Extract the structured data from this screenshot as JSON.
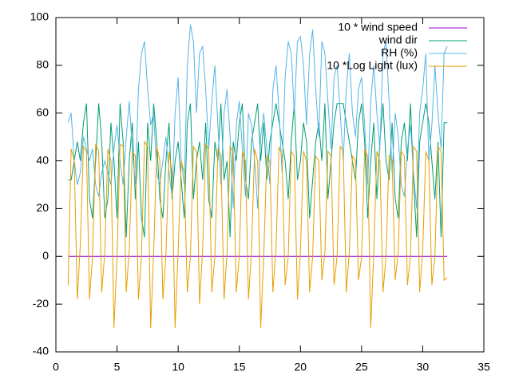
{
  "chart_data": {
    "type": "line",
    "x": [
      1,
      1.25,
      1.5,
      1.75,
      2,
      2.25,
      2.5,
      2.75,
      3,
      3.25,
      3.5,
      3.75,
      4,
      4.25,
      4.5,
      4.75,
      5,
      5.25,
      5.5,
      5.75,
      6,
      6.25,
      6.5,
      6.75,
      7,
      7.25,
      7.5,
      7.75,
      8,
      8.25,
      8.5,
      8.75,
      9,
      9.25,
      9.5,
      9.75,
      10,
      10.25,
      10.5,
      10.75,
      11,
      11.25,
      11.5,
      11.75,
      12,
      12.25,
      12.5,
      12.75,
      13,
      13.25,
      13.5,
      13.75,
      14,
      14.25,
      14.5,
      14.75,
      15,
      15.25,
      15.5,
      15.75,
      16,
      16.25,
      16.5,
      16.75,
      17,
      17.25,
      17.5,
      17.75,
      18,
      18.25,
      18.5,
      18.75,
      19,
      19.25,
      19.5,
      19.75,
      20,
      20.25,
      20.5,
      20.75,
      21,
      21.25,
      21.5,
      21.75,
      22,
      22.25,
      22.5,
      22.75,
      23,
      23.25,
      23.5,
      23.75,
      24,
      24.25,
      24.5,
      24.75,
      25,
      25.25,
      25.5,
      25.75,
      26,
      26.25,
      26.5,
      26.75,
      27,
      27.25,
      27.5,
      27.75,
      28,
      28.25,
      28.5,
      28.75,
      29,
      29.25,
      29.5,
      29.75,
      30,
      30.25,
      30.5,
      30.75,
      31,
      31.25,
      31.5,
      31.75,
      32
    ],
    "series": [
      {
        "name": "10 * wind speed",
        "color": "#9400d3",
        "values": [
          0,
          0,
          0,
          0,
          0,
          0,
          0,
          0,
          0,
          0,
          0,
          0,
          0,
          0,
          0,
          0,
          0,
          0,
          0,
          0,
          0,
          0,
          0,
          0,
          0,
          0,
          0,
          0,
          0,
          0,
          0,
          0,
          0,
          0,
          0,
          0,
          0,
          0,
          0,
          0,
          0,
          0,
          0,
          0,
          0,
          0,
          0,
          0,
          0,
          0,
          0,
          0,
          0,
          0,
          0,
          0,
          0,
          0,
          0,
          0,
          0,
          0,
          0,
          0,
          0,
          0,
          0,
          0,
          0,
          0,
          0,
          0,
          0,
          0,
          0,
          0,
          0,
          0,
          0,
          0,
          0,
          0,
          0,
          0,
          0,
          0,
          0,
          0,
          0,
          0,
          0,
          0,
          0,
          0,
          0,
          0,
          0,
          0,
          0,
          0,
          0,
          0,
          0,
          0,
          0,
          0,
          0,
          0,
          0,
          0,
          0,
          0,
          0,
          0,
          0,
          0,
          0,
          0,
          0,
          0,
          0,
          0,
          0,
          0,
          0
        ]
      },
      {
        "name": "wind dir",
        "color": "#009e73",
        "values": [
          32,
          32,
          40,
          48,
          40,
          56,
          64,
          24,
          16,
          40,
          64,
          48,
          16,
          24,
          56,
          40,
          16,
          64,
          48,
          8,
          40,
          56,
          24,
          48,
          16,
          8,
          56,
          40,
          64,
          48,
          24,
          16,
          40,
          56,
          24,
          40,
          48,
          32,
          16,
          56,
          64,
          24,
          40,
          48,
          32,
          56,
          24,
          16,
          48,
          40,
          64,
          32,
          40,
          8,
          48,
          40,
          56,
          64,
          32,
          24,
          48,
          56,
          64,
          40,
          56,
          32,
          48,
          56,
          64,
          56,
          48,
          40,
          24,
          48,
          64,
          32,
          40,
          56,
          48,
          16,
          32,
          48,
          56,
          40,
          64,
          24,
          40,
          56,
          64,
          64,
          64,
          56,
          48,
          40,
          32,
          56,
          64,
          48,
          16,
          40,
          56,
          24,
          48,
          64,
          40,
          32,
          56,
          24,
          16,
          48,
          56,
          40,
          64,
          32,
          8,
          48,
          56,
          64,
          56,
          40,
          24,
          48,
          8,
          56,
          56
        ]
      },
      {
        "name": "RH (%)",
        "color": "#56b4e9",
        "values": [
          56,
          60,
          40,
          30,
          35,
          50,
          45,
          40,
          45,
          30,
          25,
          35,
          40,
          35,
          30,
          45,
          55,
          40,
          30,
          50,
          65,
          45,
          30,
          70,
          85,
          90,
          70,
          55,
          60,
          35,
          30,
          40,
          50,
          35,
          25,
          60,
          75,
          40,
          30,
          80,
          97,
          90,
          60,
          85,
          88,
          70,
          45,
          65,
          80,
          55,
          30,
          60,
          70,
          50,
          20,
          55,
          65,
          45,
          25,
          60,
          55,
          40,
          20,
          50,
          60,
          45,
          30,
          70,
          80,
          60,
          35,
          75,
          90,
          85,
          60,
          90,
          92,
          80,
          55,
          85,
          95,
          70,
          50,
          90,
          85,
          65,
          45,
          75,
          80,
          60,
          40,
          70,
          85,
          60,
          50,
          70,
          75,
          55,
          30,
          65,
          80,
          60,
          45,
          85,
          90,
          65,
          35,
          60,
          50,
          30,
          25,
          45,
          55,
          35,
          20,
          60,
          70,
          85,
          40,
          55,
          80,
          60,
          45,
          85,
          88
        ]
      },
      {
        "name": "10 *Log Light (lux)",
        "color": "#e69f00",
        "values": [
          -12,
          45,
          40,
          -18,
          5,
          46,
          44,
          -18,
          0,
          47,
          44,
          -15,
          2,
          45,
          40,
          -30,
          0,
          47,
          46,
          -15,
          3,
          44,
          42,
          -18,
          0,
          48,
          46,
          -30,
          2,
          46,
          40,
          -18,
          0,
          44,
          35,
          -30,
          2,
          40,
          35,
          -15,
          0,
          46,
          44,
          -20,
          3,
          47,
          45,
          -15,
          0,
          45,
          42,
          -18,
          2,
          46,
          44,
          -15,
          0,
          44,
          40,
          -18,
          2,
          45,
          40,
          -30,
          0,
          42,
          40,
          -15,
          3,
          46,
          42,
          -12,
          0,
          44,
          42,
          -18,
          2,
          44,
          40,
          -15,
          0,
          42,
          40,
          -10,
          2,
          44,
          42,
          -12,
          0,
          46,
          44,
          -15,
          2,
          42,
          40,
          -10,
          0,
          45,
          42,
          -30,
          2,
          44,
          40,
          -15,
          0,
          42,
          40,
          -10,
          2,
          44,
          42,
          -12,
          0,
          46,
          44,
          -15,
          2,
          44,
          40,
          -12,
          0,
          46,
          44,
          -10,
          -9
        ]
      }
    ],
    "xlim": [
      0,
      35
    ],
    "xticks": [
      0,
      5,
      10,
      15,
      20,
      25,
      30,
      35
    ],
    "ylim": [
      -40,
      100
    ],
    "yticks": [
      -40,
      -20,
      0,
      20,
      40,
      60,
      80,
      100
    ],
    "legend": "top-right"
  }
}
